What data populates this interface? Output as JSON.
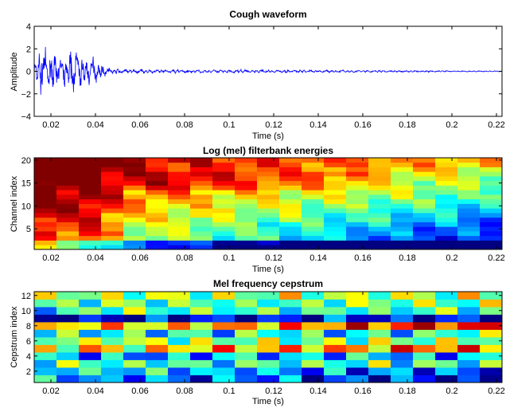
{
  "chart_data": [
    {
      "type": "line",
      "title": "Cough waveform",
      "xlabel": "Time (s)",
      "ylabel": "Amplitude",
      "xlim": [
        0.0125,
        0.2225
      ],
      "ylim": [
        -4,
        4
      ],
      "xticks": [
        0.02,
        0.04,
        0.06,
        0.08,
        0.1,
        0.12,
        0.14,
        0.16,
        0.18,
        0.2,
        0.22
      ],
      "xtick_labels": [
        "0.02",
        "0.04",
        "0.06",
        "0.08",
        "0.1",
        "0.12",
        "0.14",
        "0.16",
        "0.18",
        "0.2",
        "0.22"
      ],
      "yticks": [
        -4,
        -2,
        0,
        2,
        4
      ],
      "ytick_labels": [
        "−4",
        "−2",
        "0",
        "2",
        "4"
      ],
      "color": "#0000ff",
      "envelope": {
        "t": [
          0.0125,
          0.015,
          0.018,
          0.021,
          0.024,
          0.027,
          0.03,
          0.033,
          0.036,
          0.039,
          0.042,
          0.045,
          0.05,
          0.06,
          0.08,
          0.1,
          0.12,
          0.14,
          0.16,
          0.18,
          0.2,
          0.2225
        ],
        "amp": [
          0.6,
          1.8,
          1.6,
          1.4,
          1.0,
          1.3,
          2.0,
          1.5,
          1.0,
          1.1,
          0.6,
          0.3,
          0.22,
          0.16,
          0.14,
          0.13,
          0.12,
          0.11,
          0.09,
          0.07,
          0.05,
          0.04
        ]
      }
    },
    {
      "type": "heatmap",
      "title": "Log (mel) filterbank energies",
      "xlabel": "Time (s)",
      "ylabel": "Channel index",
      "xlim": [
        0.0125,
        0.2225
      ],
      "ylim": [
        0.5,
        20.5
      ],
      "frame_times": [
        0.015,
        0.025,
        0.035,
        0.045,
        0.055,
        0.065,
        0.075,
        0.085,
        0.095,
        0.105,
        0.115,
        0.125,
        0.135,
        0.145,
        0.155,
        0.165,
        0.175,
        0.185,
        0.195,
        0.205,
        0.215
      ],
      "channels": [
        1,
        20
      ],
      "xticks": [
        0.02,
        0.04,
        0.06,
        0.08,
        0.1,
        0.12,
        0.14,
        0.16,
        0.18,
        0.2,
        0.22
      ],
      "xtick_labels": [
        "0.02",
        "0.04",
        "0.06",
        "0.08",
        "0.1",
        "0.12",
        "0.14",
        "0.16",
        "0.18",
        "0.2",
        "0.22"
      ],
      "yticks": [
        5,
        10,
        15,
        20
      ],
      "ytick_labels": [
        "5",
        "10",
        "15",
        "20"
      ],
      "colormap": "jet",
      "approx_levels": {
        "early_frames_high_channels": 0.85,
        "late_frames_low_channels": 0.05
      }
    },
    {
      "type": "heatmap",
      "title": "Mel frequency cepstrum",
      "xlabel": "Time (s)",
      "ylabel": "Cepstrum index",
      "xlim": [
        0.0125,
        0.2225
      ],
      "ylim": [
        0.5,
        12.5
      ],
      "frame_times": [
        0.015,
        0.025,
        0.035,
        0.045,
        0.055,
        0.065,
        0.075,
        0.085,
        0.095,
        0.105,
        0.115,
        0.125,
        0.135,
        0.145,
        0.155,
        0.165,
        0.175,
        0.185,
        0.195,
        0.205,
        0.215
      ],
      "coefficients": [
        1,
        12
      ],
      "xticks": [
        0.02,
        0.04,
        0.06,
        0.08,
        0.1,
        0.12,
        0.14,
        0.16,
        0.18,
        0.2,
        0.22
      ],
      "xtick_labels": [
        "0.02",
        "0.04",
        "0.06",
        "0.08",
        "0.1",
        "0.12",
        "0.14",
        "0.16",
        "0.18",
        "0.2",
        "0.22"
      ],
      "yticks": [
        2,
        4,
        6,
        8,
        10,
        12
      ],
      "ytick_labels": [
        "2",
        "4",
        "6",
        "8",
        "10",
        "12"
      ],
      "colormap": "jet"
    }
  ]
}
